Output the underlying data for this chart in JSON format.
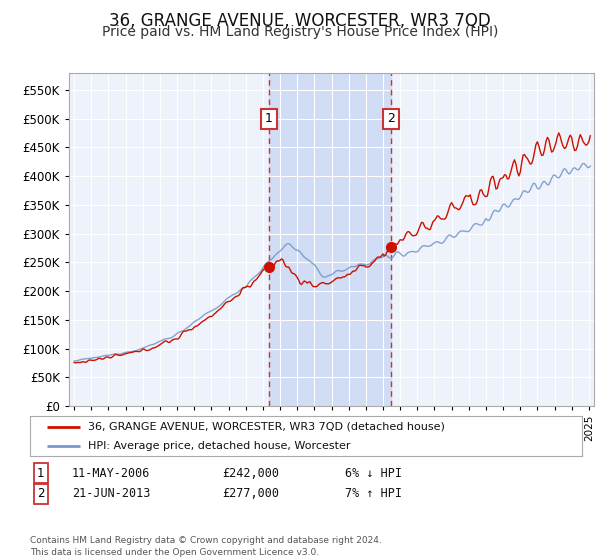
{
  "title": "36, GRANGE AVENUE, WORCESTER, WR3 7QD",
  "subtitle": "Price paid vs. HM Land Registry's House Price Index (HPI)",
  "title_fontsize": 12,
  "subtitle_fontsize": 10,
  "background_color": "#ffffff",
  "plot_bg_color": "#eef2fa",
  "grid_color": "#ffffff",
  "shade_color": "#d0ddf5",
  "sale1_x": 2006.36,
  "sale1_price": 242000,
  "sale2_x": 2013.47,
  "sale2_price": 277000,
  "hpi_color": "#7799cc",
  "price_color": "#cc1100",
  "legend_label_price": "36, GRANGE AVENUE, WORCESTER, WR3 7QD (detached house)",
  "legend_label_hpi": "HPI: Average price, detached house, Worcester",
  "note1_label": "1",
  "note1_date": "11-MAY-2006",
  "note1_price": "£242,000",
  "note1_hpi": "6% ↓ HPI",
  "note2_label": "2",
  "note2_date": "21-JUN-2013",
  "note2_price": "£277,000",
  "note2_hpi": "7% ↑ HPI",
  "footer": "Contains HM Land Registry data © Crown copyright and database right 2024.\nThis data is licensed under the Open Government Licence v3.0.",
  "ylim": [
    0,
    580000
  ],
  "yticks": [
    0,
    50000,
    100000,
    150000,
    200000,
    250000,
    300000,
    350000,
    400000,
    450000,
    500000,
    550000
  ],
  "xlim_start": 1994.7,
  "xlim_end": 2025.3,
  "hpi_anchors_t": [
    1995,
    1997,
    1999,
    2001,
    2003,
    2005,
    2007,
    2007.5,
    2008.5,
    2009.5,
    2011,
    2013,
    2015,
    2017,
    2019,
    2021,
    2022.5,
    2023.5,
    2024.5,
    2025.1
  ],
  "hpi_anchors_v": [
    78000,
    88000,
    100000,
    125000,
    165000,
    210000,
    270000,
    285000,
    258000,
    225000,
    240000,
    258000,
    272000,
    295000,
    325000,
    365000,
    390000,
    405000,
    415000,
    420000
  ],
  "price_anchors_t": [
    1995,
    1997,
    1999,
    2001,
    2003,
    2005,
    2006.36,
    2007,
    2008,
    2009,
    2010,
    2011,
    2012,
    2013.47,
    2014,
    2015,
    2017,
    2019,
    2021,
    2022,
    2023,
    2024,
    2025.1
  ],
  "price_anchors_v": [
    75000,
    84000,
    96000,
    118000,
    158000,
    205000,
    242000,
    258000,
    222000,
    208000,
    218000,
    228000,
    242000,
    277000,
    290000,
    305000,
    340000,
    375000,
    420000,
    445000,
    460000,
    455000,
    465000
  ]
}
